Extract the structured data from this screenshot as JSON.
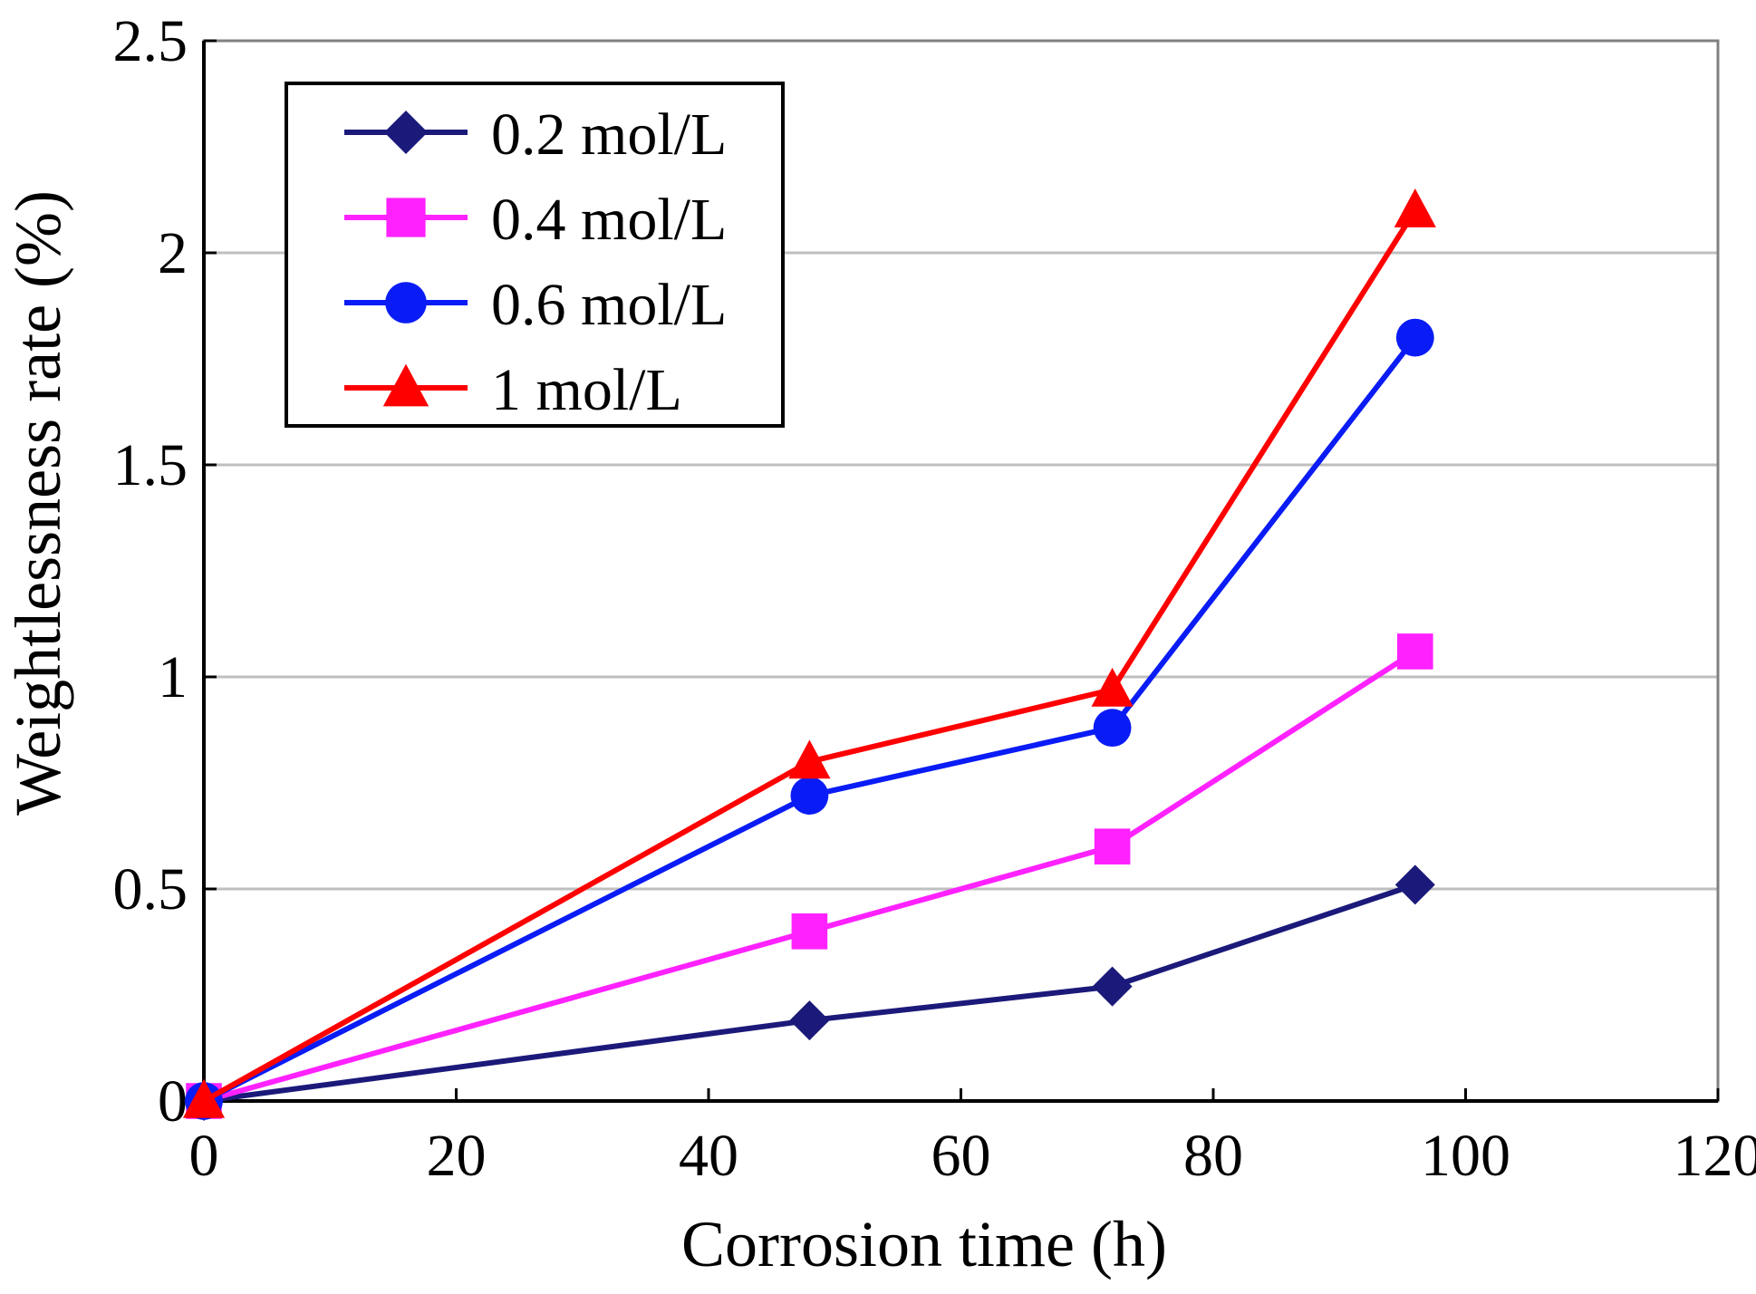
{
  "chart_data": {
    "type": "line",
    "title": "",
    "xlabel": "Corrosion time (h)",
    "ylabel": "Weightlessness rate (%)",
    "xlim": [
      0,
      120
    ],
    "ylim": [
      0,
      2.5
    ],
    "xticks": [
      0,
      20,
      40,
      60,
      80,
      100,
      120
    ],
    "yticks": [
      0,
      0.5,
      1,
      1.5,
      2,
      2.5
    ],
    "xtick_labels": [
      "0",
      "20",
      "40",
      "60",
      "80",
      "100",
      "120"
    ],
    "ytick_labels": [
      "0",
      "0.5",
      "1",
      "1.5",
      "2",
      "2.5"
    ],
    "grid": "horizontal",
    "legend_position": "top-left",
    "x": [
      0,
      48,
      72,
      96
    ],
    "series": [
      {
        "name": "0.2 mol/L",
        "values": [
          0,
          0.19,
          0.27,
          0.51
        ],
        "color": "#1b1a7a",
        "marker": "diamond"
      },
      {
        "name": "0.4 mol/L",
        "values": [
          0,
          0.4,
          0.6,
          1.06
        ],
        "color": "#ff22ff",
        "marker": "square"
      },
      {
        "name": "0.6 mol/L",
        "values": [
          0,
          0.72,
          0.88,
          1.8
        ],
        "color": "#0a1cf5",
        "marker": "circle"
      },
      {
        "name": "1 mol/L",
        "values": [
          0,
          0.8,
          0.97,
          2.1
        ],
        "color": "#ff0000",
        "marker": "triangle"
      }
    ]
  }
}
